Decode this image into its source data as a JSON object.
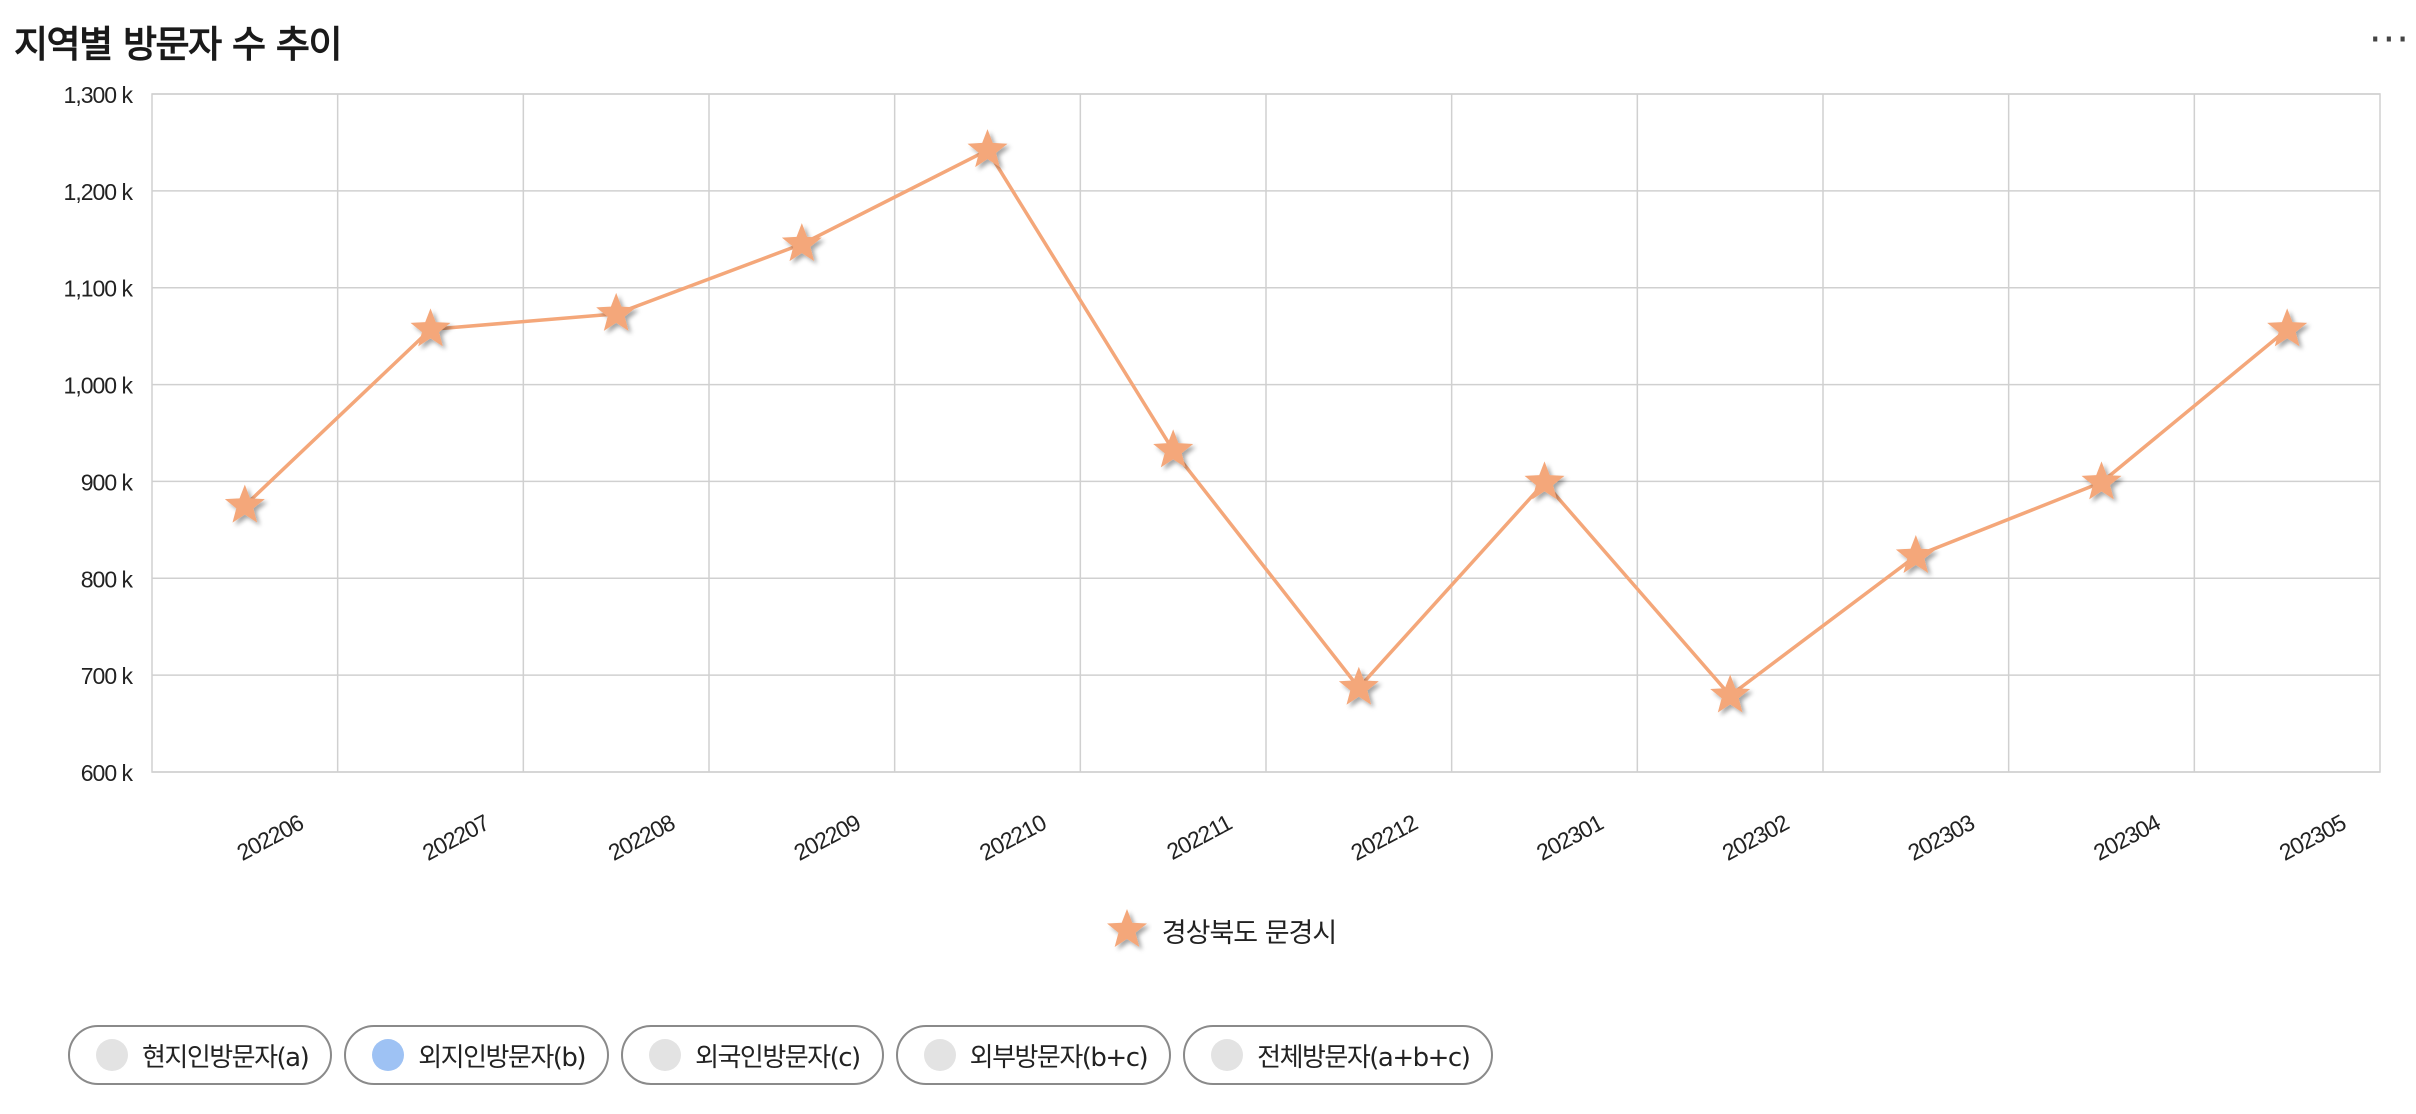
{
  "header": {
    "title": "지역별 방문자 수 추이",
    "more_icon": "more-horizontal-icon",
    "more_label": "···"
  },
  "chart_data": {
    "type": "line",
    "title": "지역별 방문자 수 추이",
    "xlabel": "",
    "ylabel": "",
    "categories": [
      "202206",
      "202207",
      "202208",
      "202209",
      "202210",
      "202211",
      "202212",
      "202301",
      "202302",
      "202303",
      "202304",
      "202305"
    ],
    "series": [
      {
        "name": "경상북도 문경시",
        "color": "#f4a77a",
        "marker": "star",
        "values": [
          875,
          1057,
          1073,
          1145,
          1242,
          932,
          687,
          899,
          679,
          823,
          899,
          1057
        ]
      }
    ],
    "ylim": [
      600,
      1300
    ],
    "yticks": [
      600,
      700,
      800,
      900,
      1000,
      1100,
      1200,
      1300
    ],
    "ytick_labels": [
      "600 k",
      "700 k",
      "800 k",
      "900 k",
      "1,000 k",
      "1,100 k",
      "1,200 k",
      "1,300 k"
    ],
    "grid": true,
    "legend": "bottom-center"
  },
  "filters": [
    {
      "label": "현지인방문자(a)",
      "active": false
    },
    {
      "label": "외지인방문자(b)",
      "active": true
    },
    {
      "label": "외국인방문자(c)",
      "active": false
    },
    {
      "label": "외부방문자(b+c)",
      "active": false
    },
    {
      "label": "전체방문자(a+b+c)",
      "active": false
    }
  ],
  "colors": {
    "series": "#f4a77a",
    "grid": "#d0d0d0",
    "active_dot": "#9ec2f4",
    "inactive_dot": "#e3e3e3"
  }
}
